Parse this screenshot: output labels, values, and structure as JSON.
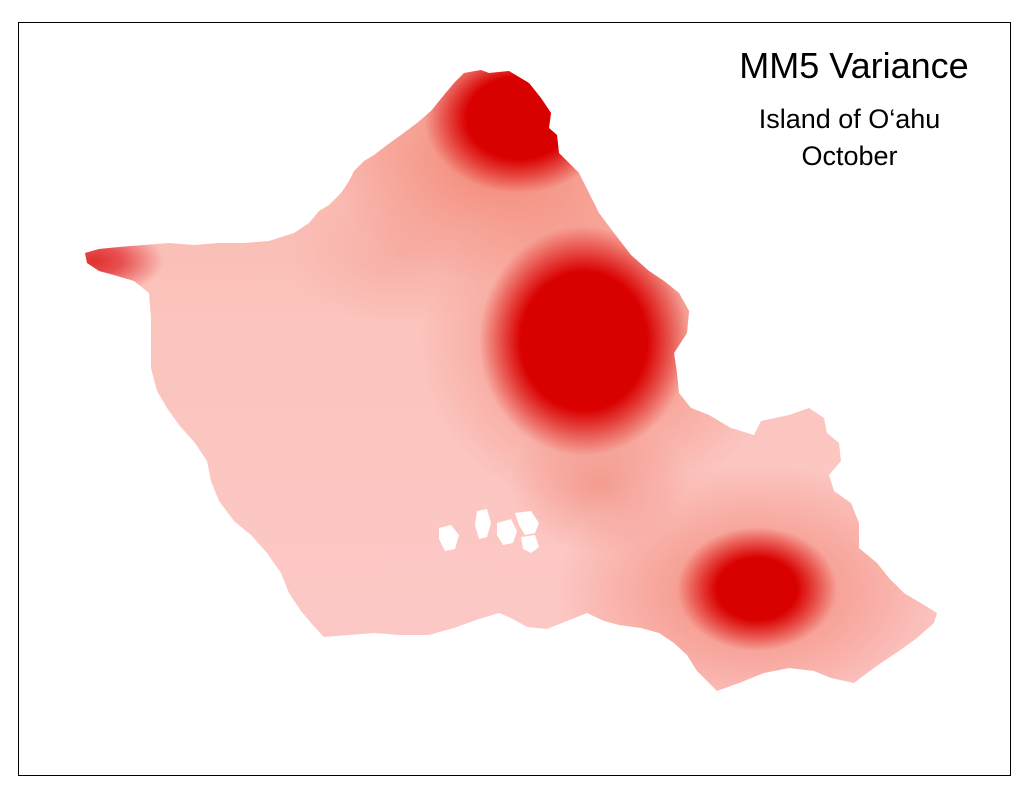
{
  "map": {
    "title": "MM5 Variance",
    "subtitle_line1": "Island of O‘ahu",
    "subtitle_line2": "October",
    "region": "Island of O‘ahu",
    "variable": "MM5 Variance",
    "month": "October",
    "colors": {
      "low": "#ffcccc",
      "mid": "#f7a096",
      "high": "#d90000",
      "border": "#000000",
      "background": "#ffffff"
    }
  }
}
